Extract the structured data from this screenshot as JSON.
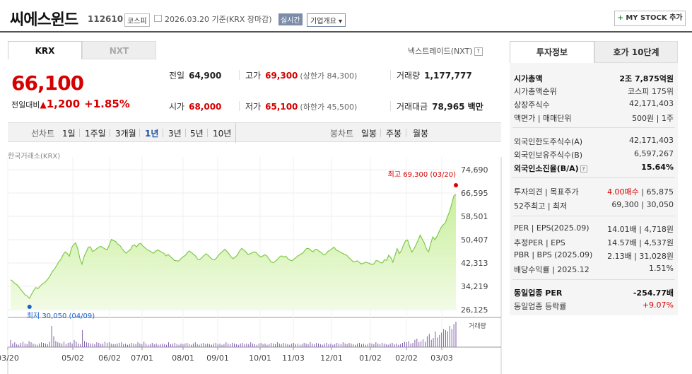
{
  "header": {
    "title": "씨에스윈드",
    "code": "112610",
    "market": "코스피",
    "date": "2026.03.20  기준(KRX 장마감)",
    "realtime": "실시간",
    "company": "기업개요 ▾",
    "mystock": "MY STOCK 추가"
  },
  "tabs": {
    "krx": "KRX",
    "nxt": "NXT",
    "nextrade": "넥스트레이드(NXT)"
  },
  "quote": {
    "price": "66,100",
    "change_label": "전일대비",
    "change": "1,200",
    "pct": "+1.85%",
    "prev_k": "전일",
    "prev_v": "64,900",
    "high_k": "고가",
    "high_v": "69,300",
    "high_sub": "(상한가 84,300)",
    "vol_k": "거래량",
    "vol_v": "1,177,777",
    "open_k": "시가",
    "open_v": "68,000",
    "low_k": "저가",
    "low_v": "65,100",
    "low_sub": "(하한가 45,500)",
    "amt_k": "거래대금",
    "amt_v": "78,965 백만"
  },
  "period": {
    "line": "선차트",
    "d1": "1일",
    "w1": "1주일",
    "m3": "3개월",
    "y1": "1년",
    "y3": "3년",
    "y5": "5년",
    "y10": "10년",
    "candle": "봉차트",
    "day": "일봉",
    "week": "주봉",
    "month": "월봉"
  },
  "chart_source": "한국거래소(KRX)",
  "chart_data": {
    "type": "area",
    "y_ticks": [
      "74,690",
      "66,595",
      "58,501",
      "50,407",
      "42,313",
      "34,219",
      "26,125"
    ],
    "x_ticks": [
      "03/20",
      "05/02",
      "06/02",
      "07/01",
      "08/01",
      "09/01",
      "10/01",
      "11/03",
      "12/01",
      "01/02",
      "02/02",
      "03/03"
    ],
    "max_label": "최고 69,300 (03/20)",
    "min_label": "최저 30,050 (04/09)",
    "volume_label": "거래량",
    "ylim": [
      26125,
      74690
    ],
    "price_points": [
      36500,
      36000,
      35200,
      34800,
      33900,
      33000,
      32100,
      31200,
      30800,
      30050,
      31500,
      32800,
      33800,
      33400,
      34200,
      35000,
      35400,
      36100,
      37000,
      38200,
      39500,
      40300,
      41500,
      42800,
      43600,
      45200,
      46200,
      45600,
      44700,
      47500,
      48700,
      49300,
      47100,
      43800,
      41900,
      44600,
      46200,
      47800,
      47900,
      46300,
      46700,
      47300,
      47800,
      48100,
      47600,
      47200,
      46900,
      48600,
      50500,
      50100,
      49800,
      48800,
      48500,
      47300,
      46400,
      45700,
      46400,
      46900,
      48300,
      48600,
      47900,
      48900,
      49100,
      48200,
      47600,
      46900,
      46600,
      46200,
      45700,
      46400,
      46800,
      46500,
      46000,
      45700,
      44800,
      45300,
      44600,
      43900,
      43200,
      43100,
      43000,
      43700,
      44400,
      44900,
      45700,
      46500,
      46000,
      45400,
      44800,
      43700,
      43500,
      44100,
      44900,
      45500,
      45000,
      44300,
      43600,
      43400,
      44000,
      45000,
      45800,
      46400,
      47100,
      46300,
      45400,
      44400,
      43800,
      44400,
      45100,
      46500,
      47400,
      46800,
      46200,
      45300,
      45500,
      45900,
      46200,
      45900,
      45000,
      44400,
      44700,
      45200,
      44800,
      43700,
      42700,
      42400,
      42900,
      43500,
      44400,
      44800,
      44400,
      44700,
      43800,
      43300,
      43100,
      43700,
      44300,
      44900,
      45300,
      45700,
      46600,
      47400,
      47300,
      46600,
      46200,
      47100,
      47000,
      46300,
      45900,
      45100,
      45400,
      46300,
      46700,
      47300,
      47800,
      46800,
      46500,
      46100,
      45700,
      45300,
      45000,
      44200,
      43600,
      42800,
      42700,
      43100,
      42500,
      42000,
      42200,
      42600,
      42400,
      42100,
      41800,
      42000,
      43200,
      43000,
      42500,
      42300,
      43500,
      43200,
      45000,
      44200,
      42600,
      44900,
      47300,
      45600,
      46500,
      48500,
      50000,
      50300,
      48000,
      46100,
      47200,
      48600,
      50200,
      52000,
      50500,
      49200,
      47100,
      46200,
      49000,
      51400,
      50400,
      51600,
      53200,
      54700,
      55600,
      56300,
      58400,
      60200,
      62800,
      65600,
      66100
    ],
    "volume_points": [
      12,
      6,
      8,
      5,
      4,
      7,
      9,
      6,
      5,
      10,
      8,
      6,
      5,
      4,
      6,
      8,
      7,
      6,
      5,
      9,
      35,
      18,
      10,
      8,
      7,
      6,
      9,
      5,
      7,
      8,
      6,
      12,
      9,
      6,
      5,
      28,
      10,
      8,
      7,
      6,
      6,
      5,
      8,
      7,
      5,
      6,
      9,
      7,
      8,
      6,
      5,
      5,
      6,
      7,
      8,
      5,
      6,
      4,
      5,
      7,
      6,
      5,
      8,
      6,
      5,
      9,
      6,
      4,
      5,
      7,
      5,
      6,
      4,
      5,
      6,
      5,
      4,
      8,
      5,
      6,
      7,
      5,
      4,
      6,
      5,
      6,
      7,
      5,
      4,
      6,
      8,
      5,
      4,
      6,
      7,
      5,
      6,
      5,
      4,
      6,
      7,
      5,
      6,
      4,
      5,
      8,
      6,
      5,
      7,
      6,
      5,
      4,
      6,
      7,
      5,
      6,
      5,
      8,
      6,
      5,
      4,
      6,
      7,
      5,
      6,
      4,
      5,
      7,
      6,
      5,
      8,
      6,
      5,
      7,
      6,
      5,
      4,
      6,
      7,
      5,
      6,
      4,
      5,
      7,
      6,
      5,
      8,
      6,
      5,
      7,
      6,
      5,
      4,
      6,
      7,
      5,
      6,
      4,
      5,
      7,
      6,
      5,
      8,
      6,
      5,
      7,
      6,
      5,
      4,
      6,
      7,
      5,
      6,
      4,
      5,
      7,
      6,
      5,
      8,
      6,
      5,
      7,
      6,
      5,
      4,
      6,
      7,
      5,
      6,
      4,
      5,
      7,
      9,
      8,
      10,
      6,
      7,
      12,
      14,
      8,
      10,
      13,
      9,
      18,
      22,
      12,
      15,
      26,
      16,
      20,
      24,
      30,
      28,
      26,
      35,
      30,
      38,
      42
    ]
  },
  "right": {
    "tab_on": "투자정보",
    "tab_off": "호가 10단계",
    "cap_k": "시가총액",
    "cap_v": "2조 7,875억원",
    "rank_k": "시가총액순위",
    "rank_v": "코스피 175위",
    "shares_k": "상장주식수",
    "shares_v": "42,171,403",
    "par_k": "액면가 | 매매단위",
    "par_v": "500원 | 1주",
    "flimit_k": "외국인한도주식수(A)",
    "flimit_v": "42,171,403",
    "fhold_k": "외국인보유주식수(B)",
    "fhold_v": "6,597,267",
    "fratio_k": "외국인소진율(B/A)",
    "fratio_v": "15.64%",
    "opinion_k": "투자의견 | 목표주가",
    "opinion_v1": "4.00매수",
    "opinion_v2": " | 65,875",
    "w52_k": "52주최고 | 최저",
    "w52_v": "69,300 | 30,050",
    "per_k": "PER | EPS(2025.09)",
    "per_v": "14.01배 | 4,718원",
    "eper_k": "추정PER | EPS",
    "eper_v": "14.57배 | 4,537원",
    "pbr_k": "PBR | BPS (2025.09)",
    "pbr_v": "2.13배 | 31,028원",
    "div_k": "배당수익률 | 2025.12",
    "div_v": "1.51%",
    "iper_k": "동일업종 PER",
    "iper_v": "-254.77배",
    "irate_k": "동일업종 등락률",
    "irate_v": "+9.07%"
  }
}
